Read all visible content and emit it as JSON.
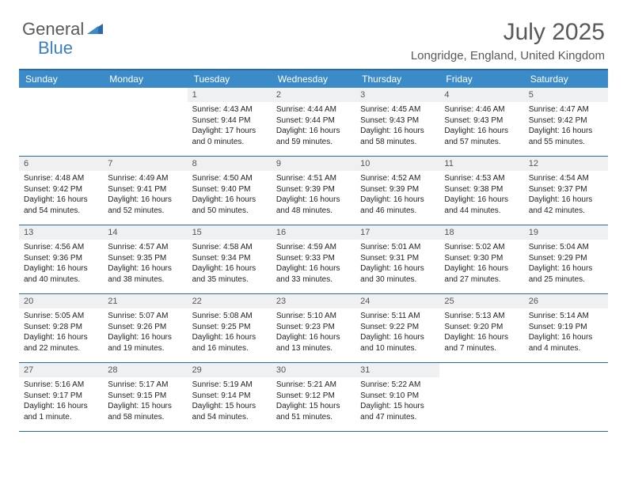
{
  "logo": {
    "text1": "General",
    "text2": "Blue"
  },
  "title": "July 2025",
  "location": "Longridge, England, United Kingdom",
  "colors": {
    "header_bg": "#3b8bc9",
    "border": "#2a6aa8",
    "daynum_bg": "#eef0f2",
    "text_gray": "#595959",
    "logo_gray": "#5a5a5a",
    "logo_blue": "#3b7fc4"
  },
  "day_headers": [
    "Sunday",
    "Monday",
    "Tuesday",
    "Wednesday",
    "Thursday",
    "Friday",
    "Saturday"
  ],
  "weeks": [
    [
      {
        "n": "",
        "sr": "",
        "ss": "",
        "dl": ""
      },
      {
        "n": "",
        "sr": "",
        "ss": "",
        "dl": ""
      },
      {
        "n": "1",
        "sr": "Sunrise: 4:43 AM",
        "ss": "Sunset: 9:44 PM",
        "dl": "Daylight: 17 hours and 0 minutes."
      },
      {
        "n": "2",
        "sr": "Sunrise: 4:44 AM",
        "ss": "Sunset: 9:44 PM",
        "dl": "Daylight: 16 hours and 59 minutes."
      },
      {
        "n": "3",
        "sr": "Sunrise: 4:45 AM",
        "ss": "Sunset: 9:43 PM",
        "dl": "Daylight: 16 hours and 58 minutes."
      },
      {
        "n": "4",
        "sr": "Sunrise: 4:46 AM",
        "ss": "Sunset: 9:43 PM",
        "dl": "Daylight: 16 hours and 57 minutes."
      },
      {
        "n": "5",
        "sr": "Sunrise: 4:47 AM",
        "ss": "Sunset: 9:42 PM",
        "dl": "Daylight: 16 hours and 55 minutes."
      }
    ],
    [
      {
        "n": "6",
        "sr": "Sunrise: 4:48 AM",
        "ss": "Sunset: 9:42 PM",
        "dl": "Daylight: 16 hours and 54 minutes."
      },
      {
        "n": "7",
        "sr": "Sunrise: 4:49 AM",
        "ss": "Sunset: 9:41 PM",
        "dl": "Daylight: 16 hours and 52 minutes."
      },
      {
        "n": "8",
        "sr": "Sunrise: 4:50 AM",
        "ss": "Sunset: 9:40 PM",
        "dl": "Daylight: 16 hours and 50 minutes."
      },
      {
        "n": "9",
        "sr": "Sunrise: 4:51 AM",
        "ss": "Sunset: 9:39 PM",
        "dl": "Daylight: 16 hours and 48 minutes."
      },
      {
        "n": "10",
        "sr": "Sunrise: 4:52 AM",
        "ss": "Sunset: 9:39 PM",
        "dl": "Daylight: 16 hours and 46 minutes."
      },
      {
        "n": "11",
        "sr": "Sunrise: 4:53 AM",
        "ss": "Sunset: 9:38 PM",
        "dl": "Daylight: 16 hours and 44 minutes."
      },
      {
        "n": "12",
        "sr": "Sunrise: 4:54 AM",
        "ss": "Sunset: 9:37 PM",
        "dl": "Daylight: 16 hours and 42 minutes."
      }
    ],
    [
      {
        "n": "13",
        "sr": "Sunrise: 4:56 AM",
        "ss": "Sunset: 9:36 PM",
        "dl": "Daylight: 16 hours and 40 minutes."
      },
      {
        "n": "14",
        "sr": "Sunrise: 4:57 AM",
        "ss": "Sunset: 9:35 PM",
        "dl": "Daylight: 16 hours and 38 minutes."
      },
      {
        "n": "15",
        "sr": "Sunrise: 4:58 AM",
        "ss": "Sunset: 9:34 PM",
        "dl": "Daylight: 16 hours and 35 minutes."
      },
      {
        "n": "16",
        "sr": "Sunrise: 4:59 AM",
        "ss": "Sunset: 9:33 PM",
        "dl": "Daylight: 16 hours and 33 minutes."
      },
      {
        "n": "17",
        "sr": "Sunrise: 5:01 AM",
        "ss": "Sunset: 9:31 PM",
        "dl": "Daylight: 16 hours and 30 minutes."
      },
      {
        "n": "18",
        "sr": "Sunrise: 5:02 AM",
        "ss": "Sunset: 9:30 PM",
        "dl": "Daylight: 16 hours and 27 minutes."
      },
      {
        "n": "19",
        "sr": "Sunrise: 5:04 AM",
        "ss": "Sunset: 9:29 PM",
        "dl": "Daylight: 16 hours and 25 minutes."
      }
    ],
    [
      {
        "n": "20",
        "sr": "Sunrise: 5:05 AM",
        "ss": "Sunset: 9:28 PM",
        "dl": "Daylight: 16 hours and 22 minutes."
      },
      {
        "n": "21",
        "sr": "Sunrise: 5:07 AM",
        "ss": "Sunset: 9:26 PM",
        "dl": "Daylight: 16 hours and 19 minutes."
      },
      {
        "n": "22",
        "sr": "Sunrise: 5:08 AM",
        "ss": "Sunset: 9:25 PM",
        "dl": "Daylight: 16 hours and 16 minutes."
      },
      {
        "n": "23",
        "sr": "Sunrise: 5:10 AM",
        "ss": "Sunset: 9:23 PM",
        "dl": "Daylight: 16 hours and 13 minutes."
      },
      {
        "n": "24",
        "sr": "Sunrise: 5:11 AM",
        "ss": "Sunset: 9:22 PM",
        "dl": "Daylight: 16 hours and 10 minutes."
      },
      {
        "n": "25",
        "sr": "Sunrise: 5:13 AM",
        "ss": "Sunset: 9:20 PM",
        "dl": "Daylight: 16 hours and 7 minutes."
      },
      {
        "n": "26",
        "sr": "Sunrise: 5:14 AM",
        "ss": "Sunset: 9:19 PM",
        "dl": "Daylight: 16 hours and 4 minutes."
      }
    ],
    [
      {
        "n": "27",
        "sr": "Sunrise: 5:16 AM",
        "ss": "Sunset: 9:17 PM",
        "dl": "Daylight: 16 hours and 1 minute."
      },
      {
        "n": "28",
        "sr": "Sunrise: 5:17 AM",
        "ss": "Sunset: 9:15 PM",
        "dl": "Daylight: 15 hours and 58 minutes."
      },
      {
        "n": "29",
        "sr": "Sunrise: 5:19 AM",
        "ss": "Sunset: 9:14 PM",
        "dl": "Daylight: 15 hours and 54 minutes."
      },
      {
        "n": "30",
        "sr": "Sunrise: 5:21 AM",
        "ss": "Sunset: 9:12 PM",
        "dl": "Daylight: 15 hours and 51 minutes."
      },
      {
        "n": "31",
        "sr": "Sunrise: 5:22 AM",
        "ss": "Sunset: 9:10 PM",
        "dl": "Daylight: 15 hours and 47 minutes."
      },
      {
        "n": "",
        "sr": "",
        "ss": "",
        "dl": ""
      },
      {
        "n": "",
        "sr": "",
        "ss": "",
        "dl": ""
      }
    ]
  ]
}
